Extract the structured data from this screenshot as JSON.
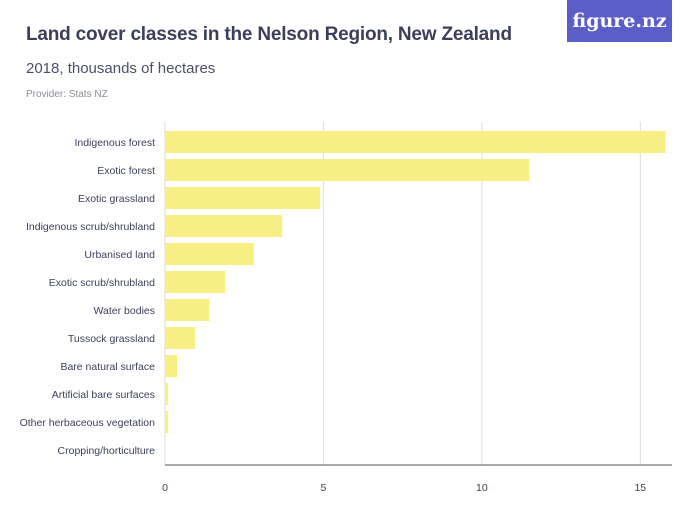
{
  "header": {
    "title": "Land cover classes in the Nelson Region, New Zealand",
    "subtitle": "2018, thousands of hectares",
    "provider": "Provider: Stats NZ",
    "logo_text": "figure.nz"
  },
  "colors": {
    "bar": "#f7ef83",
    "grid": "#dcdcdc",
    "logo_bg": "#5b5ec9"
  },
  "chart_data": {
    "type": "bar",
    "orientation": "horizontal",
    "categories": [
      "Indigenous forest",
      "Exotic forest",
      "Exotic grassland",
      "Indigenous scrub/shrubland",
      "Urbanised land",
      "Exotic scrub/shrubland",
      "Water bodies",
      "Tussock grassland",
      "Bare natural surface",
      "Artificial bare surfaces",
      "Other herbaceous vegetation",
      "Cropping/horticulture"
    ],
    "values": [
      15.8,
      11.5,
      4.9,
      3.7,
      2.8,
      1.9,
      1.4,
      0.95,
      0.38,
      0.1,
      0.1,
      0.02
    ],
    "xticks": [
      0,
      5,
      10,
      15
    ],
    "xlim": [
      0,
      16
    ],
    "grid": true
  }
}
